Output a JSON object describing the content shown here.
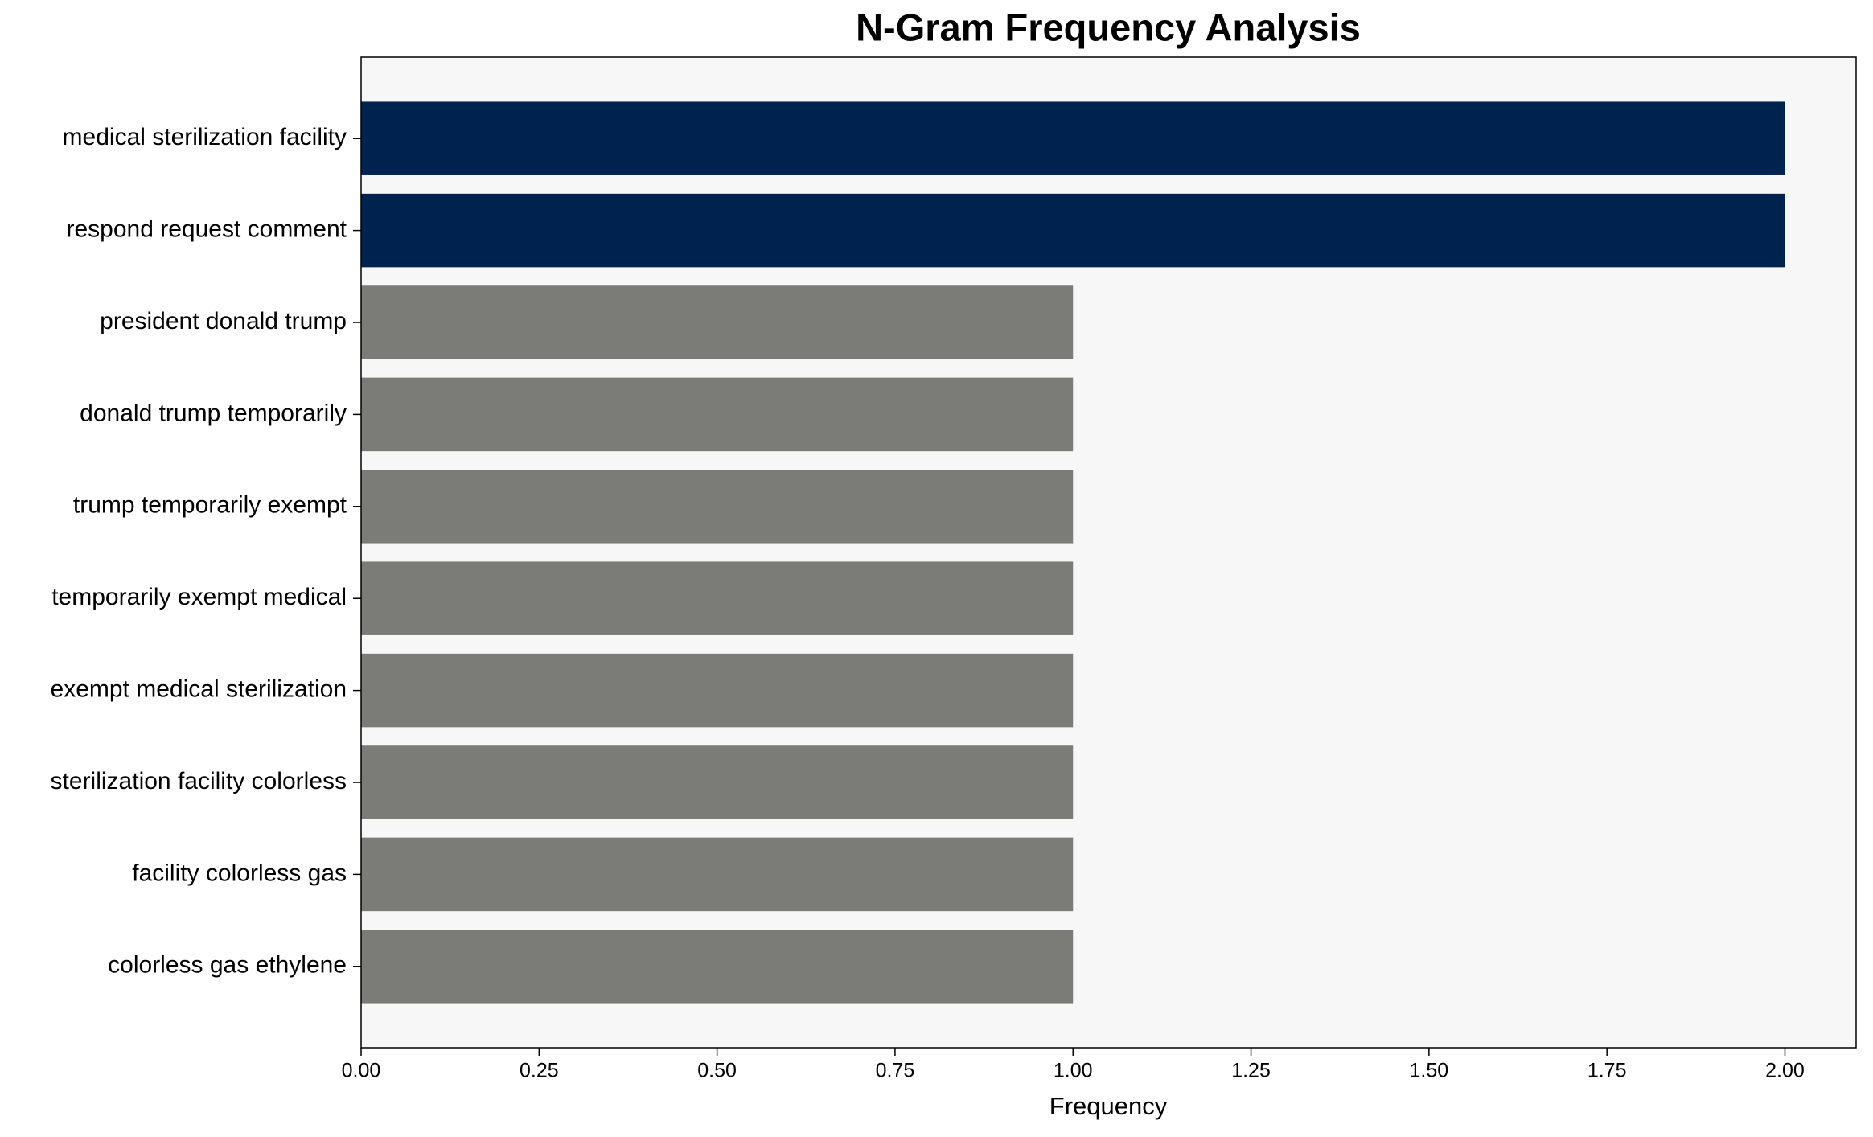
{
  "chart_data": {
    "type": "barh",
    "title": "N-Gram Frequency Analysis",
    "xlabel": "Frequency",
    "categories": [
      "medical sterilization facility",
      "respond request comment",
      "president donald trump",
      "donald trump temporarily",
      "trump temporarily exempt",
      "temporarily exempt medical",
      "exempt medical sterilization",
      "sterilization facility colorless",
      "facility colorless gas",
      "colorless gas ethylene"
    ],
    "values": [
      2,
      2,
      1,
      1,
      1,
      1,
      1,
      1,
      1,
      1
    ],
    "colors": [
      "#00224e",
      "#00224e",
      "#7b7b77",
      "#7b7b77",
      "#7b7b77",
      "#7b7b77",
      "#7b7b77",
      "#7b7b77",
      "#7b7b77",
      "#7b7b77"
    ],
    "xlim": [
      0,
      2.1
    ],
    "xticks": [
      {
        "value": 0,
        "label": "0.00"
      },
      {
        "value": 0.25,
        "label": "0.25"
      },
      {
        "value": 0.5,
        "label": "0.50"
      },
      {
        "value": 0.75,
        "label": "0.75"
      },
      {
        "value": 1,
        "label": "1.00"
      },
      {
        "value": 1.25,
        "label": "1.25"
      },
      {
        "value": 1.5,
        "label": "1.50"
      },
      {
        "value": 1.75,
        "label": "1.75"
      },
      {
        "value": 2,
        "label": "2.00"
      }
    ],
    "background": "#f7f7f7"
  }
}
